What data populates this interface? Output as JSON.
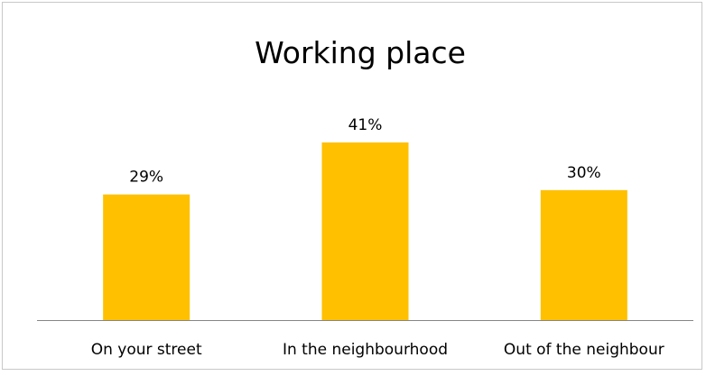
{
  "chart_data": {
    "type": "bar",
    "title": "Working place",
    "categories": [
      "On your street",
      "In the neighbourhood",
      "Out of the neighbour"
    ],
    "values": [
      29,
      41,
      30
    ],
    "data_labels": [
      "29%",
      "41%",
      "30%"
    ],
    "unit": "%",
    "bar_color": "#FFC000",
    "ylim": [
      0,
      45
    ],
    "grid": false,
    "legend": "none",
    "xlabel": "",
    "ylabel": ""
  }
}
